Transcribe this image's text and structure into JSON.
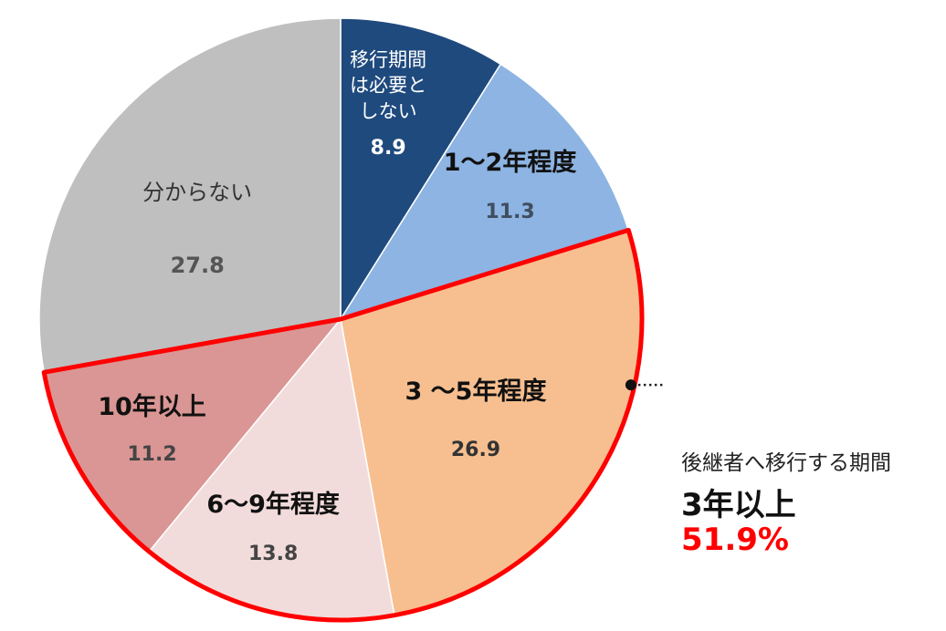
{
  "chart_data": {
    "type": "pie",
    "unit": "%",
    "slices": [
      {
        "label": "移行期間\nは必要と\nしない",
        "value": 8.9,
        "color": "#1f4a7e",
        "text_color": "#ffffff",
        "value_color": "#ffffff",
        "label_weight": "normal"
      },
      {
        "label": "1～2年程度",
        "value": 11.3,
        "color": "#8db4e2",
        "text_color": "#111111",
        "value_color": "#404e60",
        "label_weight": "bold"
      },
      {
        "label": "3 ～5年程度",
        "value": 26.9,
        "color": "#f7bf90",
        "text_color": "#111111",
        "value_color": "#333333",
        "label_weight": "bold"
      },
      {
        "label": "6～9年程度",
        "value": 13.8,
        "color": "#f2dcdb",
        "text_color": "#111111",
        "value_color": "#444444",
        "label_weight": "bold"
      },
      {
        "label": "10年以上",
        "value": 11.2,
        "color": "#da9694",
        "text_color": "#111111",
        "value_color": "#444444",
        "label_weight": "bold"
      },
      {
        "label": "分からない",
        "value": 27.8,
        "color": "#bfbfbf",
        "text_color": "#333333",
        "value_color": "#555555",
        "label_weight": "normal"
      }
    ],
    "highlight": {
      "slices": [
        "3 ～5年程度",
        "6～9年程度",
        "10年以上"
      ],
      "outline_color": "#ff0000"
    },
    "annotation": {
      "subtitle": "後継者へ移行する期間",
      "title": "3年以上",
      "value": "51.9%",
      "value_color": "#ff0000"
    }
  }
}
